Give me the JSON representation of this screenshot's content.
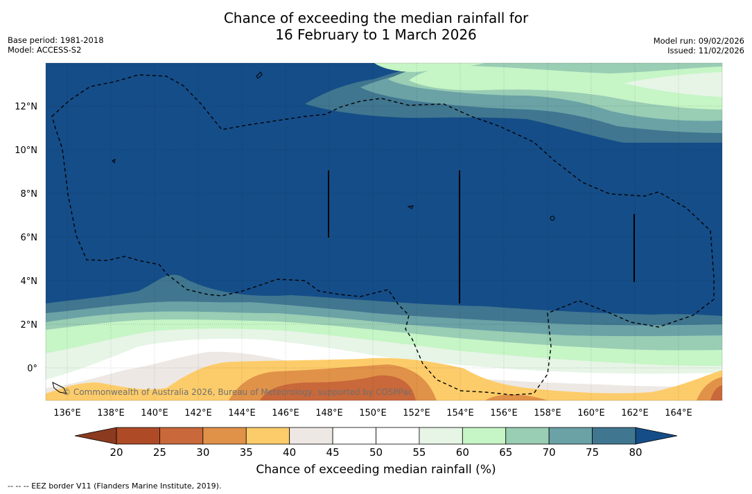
{
  "title_line1": "Chance of exceeding the median rainfall for",
  "title_line2": "16 February to 1 March 2026",
  "base_period": "Base period: 1981-2018",
  "model": "Model: ACCESS-S2",
  "model_run": "Model run: 09/02/2026",
  "issued": "Issued: 11/02/2026",
  "credit": "© Commonwealth of Australia 2026, Bureau of Meteorology, supported by COSPPac",
  "lat_labels": [
    "12°N",
    "10°N",
    "8°N",
    "6°N",
    "4°N",
    "2°N",
    "0°"
  ],
  "lon_labels": [
    "136°E",
    "138°E",
    "140°E",
    "142°E",
    "144°E",
    "146°E",
    "148°E",
    "150°E",
    "152°E",
    "154°E",
    "156°E",
    "158°E",
    "160°E",
    "162°E",
    "164°E"
  ],
  "colorbar": {
    "title": "Chance of exceeding median rainfall (%)",
    "ticks": [
      "20",
      "25",
      "30",
      "35",
      "40",
      "45",
      "50",
      "55",
      "60",
      "65",
      "70",
      "75",
      "80"
    ],
    "colors": [
      "#8b3a1f",
      "#ae4a26",
      "#c9683a",
      "#e19249",
      "#fdcc6a",
      "#ede8e3",
      "#ffffff",
      "#ffffff",
      "#e6f5e6",
      "#c6f5c6",
      "#99cdb4",
      "#6aa2a6",
      "#40768f",
      "#154d88"
    ]
  },
  "footer": "--  --  -- EEZ border V11 (Flanders Marine Institute, 2019)."
}
